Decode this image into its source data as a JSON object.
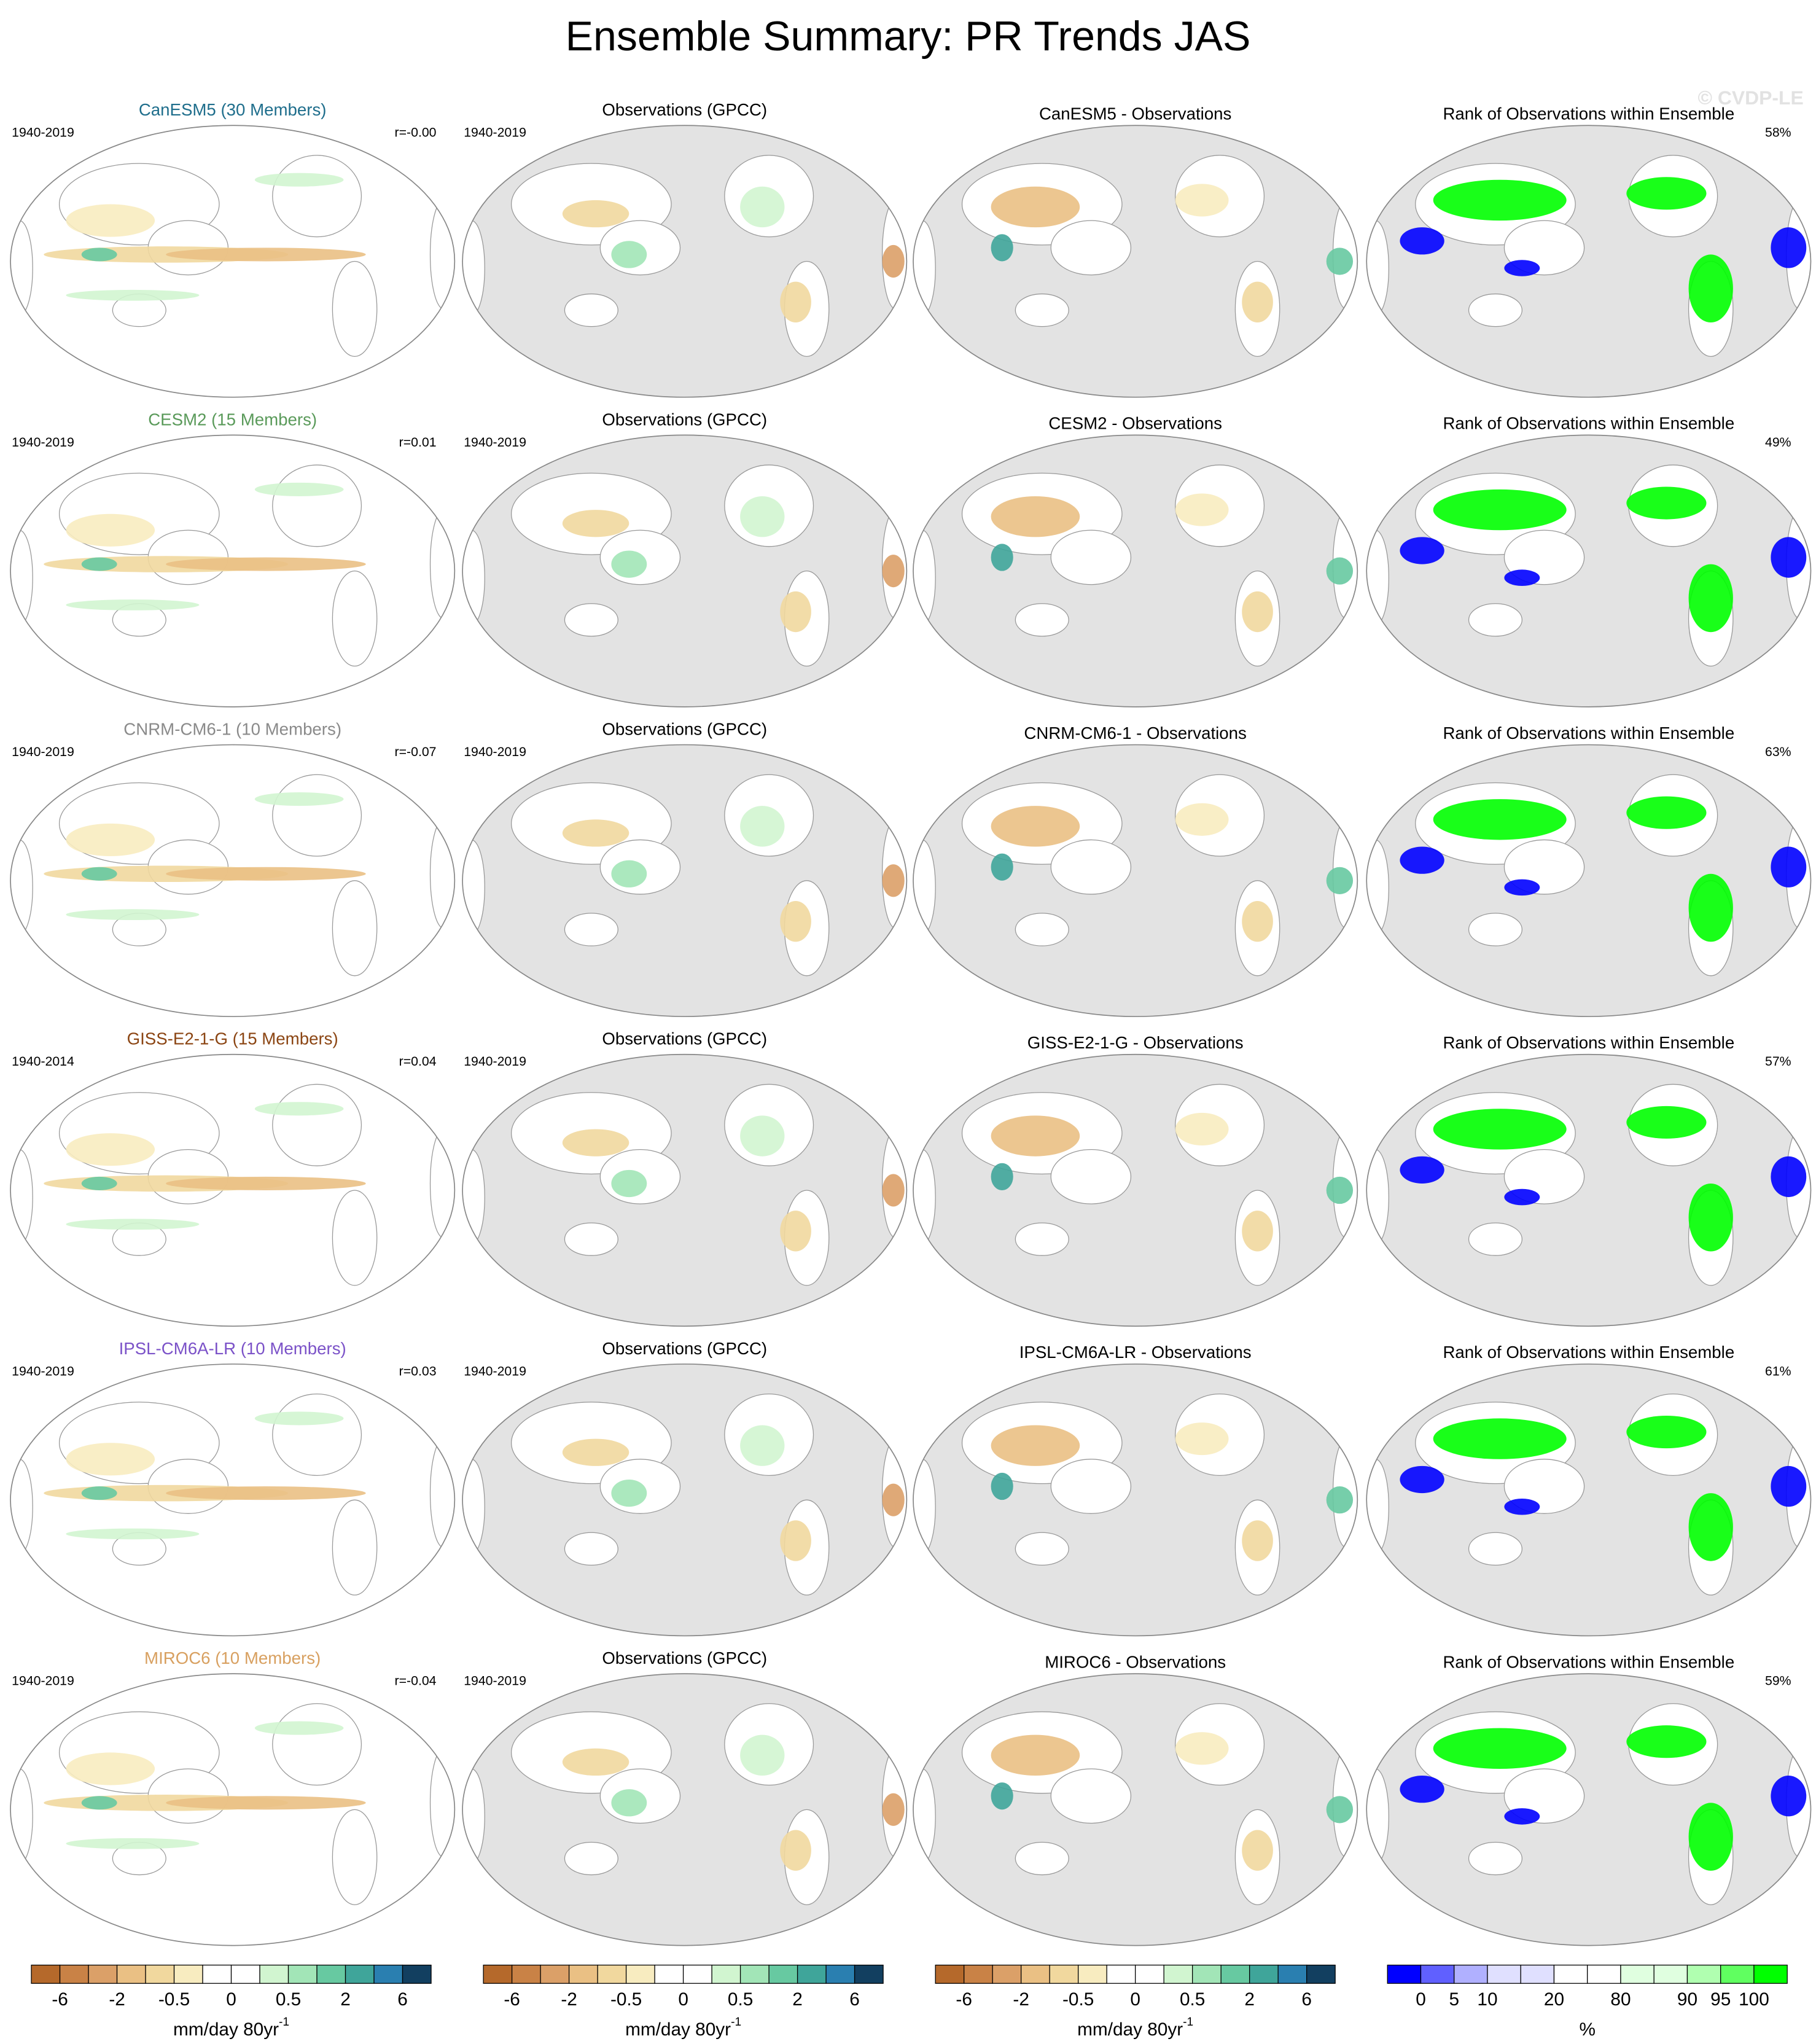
{
  "title": "Ensemble Summary: PR Trends JAS",
  "watermark": "© CVDP-LE",
  "rows": [
    {
      "model": {
        "title": "CanESM5 (30 Members)",
        "color": "#1f6e8c",
        "period": "1940-2019",
        "r": "r=-0.00"
      },
      "obs": {
        "title": "Observations (GPCC)",
        "period": "1940-2019"
      },
      "diff": {
        "title": "CanESM5 - Observations"
      },
      "rank": {
        "title": "Rank of Observations within Ensemble",
        "percent": "58%"
      }
    },
    {
      "model": {
        "title": "CESM2 (15 Members)",
        "color": "#5a9a5a",
        "period": "1940-2019",
        "r": "r=0.01"
      },
      "obs": {
        "title": "Observations (GPCC)",
        "period": "1940-2019"
      },
      "diff": {
        "title": "CESM2 - Observations"
      },
      "rank": {
        "title": "Rank of Observations within Ensemble",
        "percent": "49%"
      }
    },
    {
      "model": {
        "title": "CNRM-CM6-1 (10 Members)",
        "color": "#8a8a8a",
        "period": "1940-2019",
        "r": "r=-0.07"
      },
      "obs": {
        "title": "Observations (GPCC)",
        "period": "1940-2019"
      },
      "diff": {
        "title": "CNRM-CM6-1 - Observations"
      },
      "rank": {
        "title": "Rank of Observations within Ensemble",
        "percent": "63%"
      }
    },
    {
      "model": {
        "title": "GISS-E2-1-G (15 Members)",
        "color": "#8b4513",
        "period": "1940-2014",
        "r": "r=0.04"
      },
      "obs": {
        "title": "Observations (GPCC)",
        "period": "1940-2019"
      },
      "diff": {
        "title": "GISS-E2-1-G - Observations"
      },
      "rank": {
        "title": "Rank of Observations within Ensemble",
        "percent": "57%"
      }
    },
    {
      "model": {
        "title": "IPSL-CM6A-LR (10 Members)",
        "color": "#7b52c8",
        "period": "1940-2019",
        "r": "r=0.03"
      },
      "obs": {
        "title": "Observations (GPCC)",
        "period": "1940-2019"
      },
      "diff": {
        "title": "IPSL-CM6A-LR - Observations"
      },
      "rank": {
        "title": "Rank of Observations within Ensemble",
        "percent": "61%"
      }
    },
    {
      "model": {
        "title": "MIROC6 (10 Members)",
        "color": "#d8a060",
        "period": "1940-2019",
        "r": "r=-0.04"
      },
      "obs": {
        "title": "Observations (GPCC)",
        "period": "1940-2019"
      },
      "diff": {
        "title": "MIROC6 - Observations"
      },
      "rank": {
        "title": "Rank of Observations within Ensemble",
        "percent": "59%"
      }
    }
  ],
  "trend_colorbar": {
    "colors": [
      "#b5692b",
      "#c98246",
      "#dba068",
      "#eac084",
      "#f1d89e",
      "#f8ecc0",
      "#ffffff",
      "#ffffff",
      "#d1f5d0",
      "#a2e5b7",
      "#67c9a1",
      "#3fa59a",
      "#2a7fb0",
      "#123f60"
    ],
    "labels": [
      "-6",
      "-2",
      "-0.5",
      "0",
      "0.5",
      "2",
      "6"
    ],
    "unit": "mm/day 80yr",
    "unit_exponent": "-1"
  },
  "rank_colorbar": {
    "colors": [
      "#0000ff",
      "#6060ff",
      "#b0b0ff",
      "#e0e0ff",
      "#e0e0ff",
      "#ffffff",
      "#ffffff",
      "#e0ffe0",
      "#e0ffe0",
      "#b0ffb0",
      "#60ff60",
      "#00ff00"
    ],
    "labels": [
      "0",
      "5",
      "10",
      "20",
      "80",
      "90",
      "95",
      "100"
    ],
    "label_boundaries": [
      1,
      2,
      3,
      5,
      7,
      9,
      10,
      11
    ],
    "unit": "%"
  }
}
